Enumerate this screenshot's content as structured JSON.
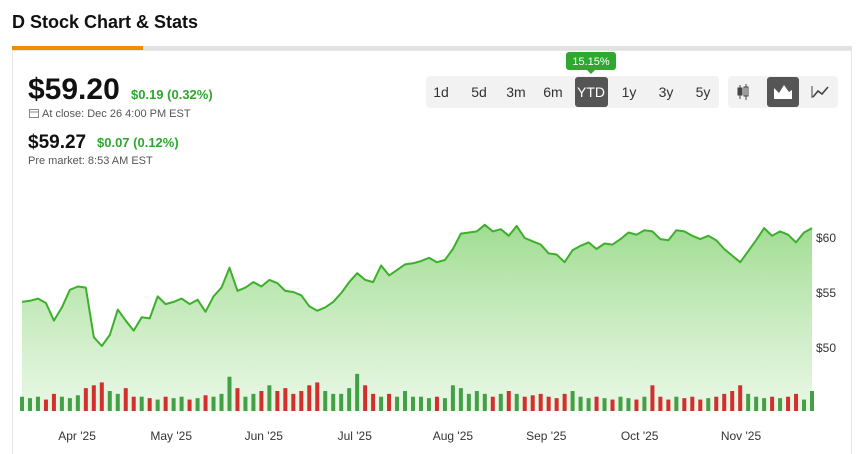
{
  "header": {
    "title": "D Stock Chart & Stats"
  },
  "quote": {
    "price": "$59.20",
    "change": "$0.19 (0.32%)",
    "close_time": "At close: Dec 26 4:00 PM EST",
    "pre_price": "$59.27",
    "pre_change": "$0.07 (0.12%)",
    "pre_time": "Pre market: 8:53 AM EST"
  },
  "controls": {
    "ranges": [
      "1d",
      "5d",
      "3m",
      "6m",
      "YTD",
      "1y",
      "3y",
      "5y"
    ],
    "active_range": "YTD",
    "badge": "15.15%"
  },
  "chart_data": {
    "type": "area",
    "grid": false,
    "xlim": [
      0,
      99
    ],
    "xticks": [
      {
        "value": 6.9,
        "label": "Apr '25"
      },
      {
        "value": 18.7,
        "label": "May '25"
      },
      {
        "value": 30.3,
        "label": "Jun '25"
      },
      {
        "value": 41.7,
        "label": "Jul '25"
      },
      {
        "value": 54.0,
        "label": "Aug '25"
      },
      {
        "value": 65.7,
        "label": "Sep '25"
      },
      {
        "value": 77.4,
        "label": "Oct '25"
      },
      {
        "value": 90.1,
        "label": "Nov '25"
      }
    ],
    "ylim": [
      44.3,
      63.9
    ],
    "yticks": [
      {
        "value": 50,
        "label": "$50"
      },
      {
        "value": 55,
        "label": "$55"
      },
      {
        "value": 60,
        "label": "$60"
      }
    ],
    "color": "#3cb02c",
    "up_color": "#43a047",
    "down_color": "#d32f2f",
    "values": [
      54.2,
      54.3,
      54.5,
      54.1,
      52.5,
      53.7,
      55.3,
      55.6,
      55.5,
      51.0,
      50.2,
      51.2,
      53.5,
      52.5,
      51.6,
      52.8,
      52.7,
      54.7,
      54.0,
      54.2,
      54.5,
      54.0,
      54.4,
      53.3,
      54.7,
      55.5,
      57.3,
      55.2,
      55.5,
      56.0,
      55.6,
      56.2,
      55.9,
      55.2,
      55.1,
      54.8,
      53.8,
      53.4,
      53.7,
      54.2,
      55.0,
      56.0,
      56.8,
      56.2,
      56.0,
      57.5,
      56.6,
      57.1,
      57.6,
      57.7,
      57.9,
      58.2,
      57.8,
      58.0,
      59.0,
      60.4,
      60.5,
      60.6,
      61.2,
      60.6,
      60.8,
      60.2,
      61.1,
      60.0,
      59.7,
      59.4,
      58.6,
      58.5,
      57.8,
      58.9,
      59.3,
      59.6,
      59.0,
      59.5,
      59.4,
      59.9,
      60.5,
      60.3,
      60.7,
      60.6,
      59.9,
      59.8,
      60.7,
      60.6,
      60.2,
      59.9,
      60.2,
      59.8,
      59.0,
      58.4,
      57.8,
      58.8,
      59.8,
      60.9,
      60.2,
      60.6,
      60.3,
      59.6,
      60.5,
      60.9
    ],
    "volume_lim": [
      0,
      14
    ],
    "volume": [
      5,
      4.5,
      5,
      4,
      6,
      5,
      4.5,
      5.5,
      8,
      9,
      10,
      7,
      6,
      8,
      5,
      5,
      4.5,
      4,
      5,
      4.5,
      5,
      4,
      4.5,
      5.5,
      5,
      6,
      12,
      8,
      5,
      6,
      7,
      9,
      7,
      8,
      6,
      7,
      9,
      10,
      7,
      6,
      6,
      8,
      13,
      9,
      6,
      5,
      6,
      5,
      7,
      5,
      5,
      4.5,
      5,
      4.5,
      9,
      8,
      6,
      7,
      6,
      5,
      6,
      7,
      6,
      5,
      5.5,
      6,
      5,
      4.5,
      6,
      7,
      5,
      4.5,
      5,
      4.5,
      4,
      5,
      4.5,
      4,
      5,
      9,
      5,
      4,
      5,
      4.5,
      5,
      4,
      4.5,
      5,
      6,
      7,
      9,
      6,
      5,
      4.5,
      5,
      4.5,
      5,
      6,
      4,
      7
    ]
  }
}
